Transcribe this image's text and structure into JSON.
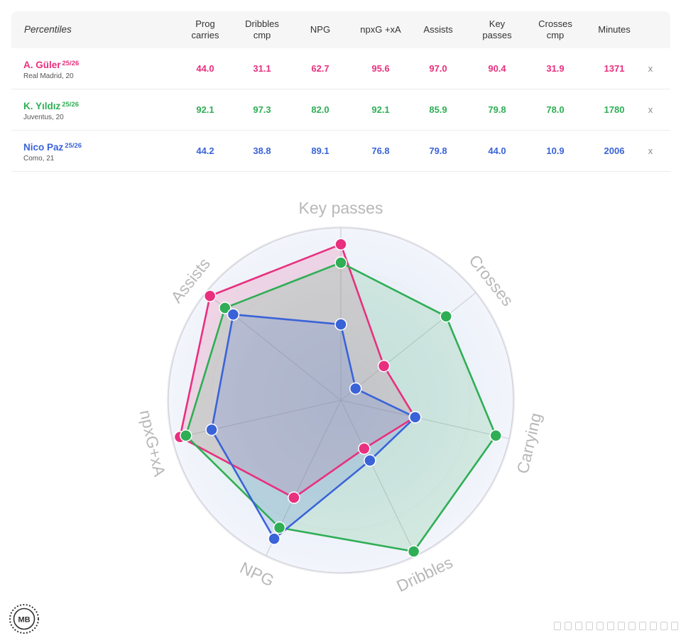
{
  "table": {
    "corner_label": "Percentiles",
    "columns": [
      "Prog\ncarries",
      "Dribbles\ncmp",
      "NPG",
      "npxG +xA",
      "Assists",
      "Key\npasses",
      "Crosses\ncmp",
      "Minutes"
    ],
    "remove_label": "x",
    "rows": [
      {
        "name": "A. Güler",
        "season": "25/26",
        "club": "Real Madrid, 20",
        "color": "#e8307f",
        "values": [
          "44.0",
          "31.1",
          "62.7",
          "95.6",
          "97.0",
          "90.4",
          "31.9",
          "1371"
        ]
      },
      {
        "name": "K. Yıldız",
        "season": "25/26",
        "club": "Juventus, 20",
        "color": "#2fae55",
        "values": [
          "92.1",
          "97.3",
          "82.0",
          "92.1",
          "85.9",
          "79.8",
          "78.0",
          "1780"
        ]
      },
      {
        "name": "Nico Paz",
        "season": "25/26",
        "club": "Como, 21",
        "color": "#3a63d8",
        "values": [
          "44.2",
          "38.8",
          "89.1",
          "76.8",
          "79.8",
          "44.0",
          "10.9",
          "2006"
        ]
      }
    ]
  },
  "chart_data": {
    "type": "radar",
    "axes": [
      "Key passes",
      "Crosses",
      "Carrying",
      "Dribbles",
      "NPG",
      "npxG+xA",
      "Assists"
    ],
    "range": [
      0,
      100
    ],
    "series": [
      {
        "name": "A. Güler",
        "color": "#e8307f",
        "values": [
          90.4,
          31.9,
          44.0,
          31.1,
          62.7,
          95.6,
          97.0
        ]
      },
      {
        "name": "K. Yıldız",
        "color": "#2fae55",
        "values": [
          79.8,
          78.0,
          92.1,
          97.3,
          82.0,
          92.1,
          85.9
        ]
      },
      {
        "name": "Nico Paz",
        "color": "#3a63d8",
        "values": [
          44.0,
          10.9,
          44.2,
          38.8,
          89.1,
          76.8,
          79.8
        ]
      }
    ]
  },
  "logo_text": "MB"
}
